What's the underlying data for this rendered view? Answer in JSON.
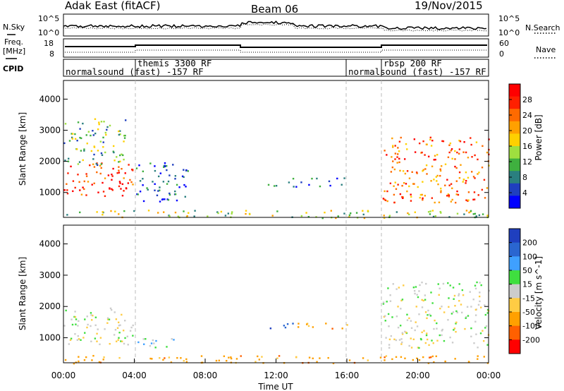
{
  "header": {
    "title": "Adak East (fitACF)",
    "beam": "Beam 06",
    "date": "19/Nov/2015"
  },
  "side_labels": {
    "nsky": "N.Sky",
    "freq_line1": "Freq.",
    "freq_line2": "[MHz]",
    "cpid": "CPID",
    "nsearch": "N.Search",
    "nave": "Nave"
  },
  "noise_panel": {
    "left_ticks": [
      "10^5",
      "10^0"
    ],
    "right_ticks": [
      "10^5",
      "10^0"
    ]
  },
  "freq_panel": {
    "left_ticks": [
      "18",
      "8"
    ],
    "right_ticks": [
      "60",
      "0"
    ]
  },
  "cpid_segments": [
    {
      "label": "normalsound (fast) -157 RF",
      "start_hour": 0,
      "row": 2
    },
    {
      "label": "themis 3300 RF",
      "start_hour": 4,
      "row": 1
    },
    {
      "label": "normalsound (fast) -157 RF",
      "start_hour": 16,
      "row": 2
    },
    {
      "label": "rbsp 200 RF",
      "start_hour": 18,
      "row": 1
    }
  ],
  "x_axis": {
    "label": "Time UT",
    "ticks": [
      "00:00",
      "04:00",
      "08:00",
      "12:00",
      "16:00",
      "20:00",
      "00:00"
    ]
  },
  "colors": {
    "power_scale": [
      "#0000ff",
      "#1f3fbf",
      "#2a7f7f",
      "#3fb03f",
      "#9fdf3f",
      "#ffd000",
      "#ffa000",
      "#ff6a00",
      "#ff2000",
      "#ff0000"
    ],
    "velocity_scale": [
      "#1f3fbf",
      "#2a66d0",
      "#3fa0ff",
      "#3fdf3f",
      "#cccccc",
      "#ffcc44",
      "#ffa000",
      "#ff6000",
      "#ff0000"
    ]
  },
  "chart_data": [
    {
      "type": "heatmap",
      "title": "",
      "xlabel": "Time UT",
      "ylabel": "Slant Range [km]",
      "yticks": [
        "1000",
        "2000",
        "3000",
        "4000"
      ],
      "colorbar_label": "Power [dB]",
      "colorbar_ticks": [
        "4",
        "8",
        "12",
        "16",
        "20",
        "24",
        "28"
      ],
      "x_range_hours": [
        0,
        24
      ],
      "y_range_km": [
        200,
        4600
      ],
      "regions": [
        {
          "t": [
            0.0,
            3.9
          ],
          "r": [
            800,
            2000
          ],
          "value": 28
        },
        {
          "t": [
            0.0,
            3.5
          ],
          "r": [
            1900,
            3400
          ],
          "value": 12
        },
        {
          "t": [
            4.0,
            7.0
          ],
          "r": [
            700,
            2000
          ],
          "value": 6
        },
        {
          "t": [
            11.5,
            16.0
          ],
          "r": [
            1200,
            1500
          ],
          "value": 6
        },
        {
          "t": [
            18.0,
            24.0
          ],
          "r": [
            700,
            2800
          ],
          "value": 24
        },
        {
          "t": [
            0.0,
            24.0
          ],
          "r": [
            200,
            450
          ],
          "value": 14
        }
      ]
    },
    {
      "type": "heatmap",
      "title": "",
      "xlabel": "Time UT",
      "ylabel": "Slant Range [km]",
      "yticks": [
        "1000",
        "2000",
        "3000",
        "4000"
      ],
      "colorbar_label": "Velocity [m s^-1]",
      "colorbar_ticks": [
        "200",
        "100",
        "50",
        "15",
        "-15",
        "-50",
        "-100",
        "-200"
      ],
      "x_range_hours": [
        0,
        24
      ],
      "y_range_km": [
        200,
        4600
      ],
      "regions": [
        {
          "t": [
            0.0,
            3.9
          ],
          "r": [
            800,
            2000
          ],
          "value": 0
        },
        {
          "t": [
            4.0,
            7.0
          ],
          "r": [
            700,
            1000
          ],
          "value": 20
        },
        {
          "t": [
            11.5,
            13.0
          ],
          "r": [
            1300,
            1500
          ],
          "value": 150
        },
        {
          "t": [
            13.0,
            16.0
          ],
          "r": [
            1300,
            1500
          ],
          "value": -50
        },
        {
          "t": [
            18.0,
            24.0
          ],
          "r": [
            700,
            2800
          ],
          "value": 0
        },
        {
          "t": [
            0.0,
            24.0
          ],
          "r": [
            200,
            450
          ],
          "value": -50
        }
      ]
    }
  ]
}
